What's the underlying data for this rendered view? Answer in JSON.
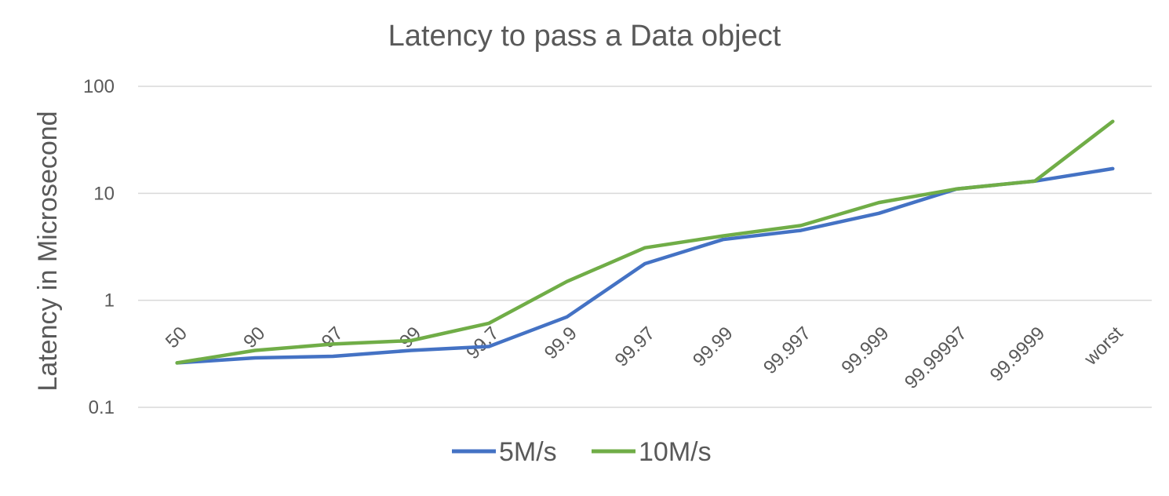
{
  "chart_data": {
    "type": "line",
    "title": "Latency to pass a Data object",
    "ylabel": "Latency in Microsecond",
    "xlabel": "",
    "y_scale": "log",
    "ylim": [
      0.1,
      100
    ],
    "y_ticks": [
      "0.1",
      "1",
      "10",
      "100"
    ],
    "grid": true,
    "legend_position": "bottom",
    "categories": [
      "50",
      "90",
      "97",
      "99",
      "99.7",
      "99.9",
      "99.97",
      "99.99",
      "99.997",
      "99.999",
      "99.99997",
      "99.9999",
      "worst"
    ],
    "series": [
      {
        "name": "5M/s",
        "color": "#4472c4",
        "values": [
          0.26,
          0.29,
          0.3,
          0.34,
          0.37,
          0.7,
          2.2,
          3.7,
          4.5,
          6.5,
          11,
          13,
          17
        ]
      },
      {
        "name": "10M/s",
        "color": "#70ad47",
        "values": [
          0.26,
          0.34,
          0.39,
          0.42,
          0.61,
          1.5,
          3.1,
          4.0,
          5.0,
          8.2,
          11,
          13,
          47
        ]
      }
    ]
  }
}
